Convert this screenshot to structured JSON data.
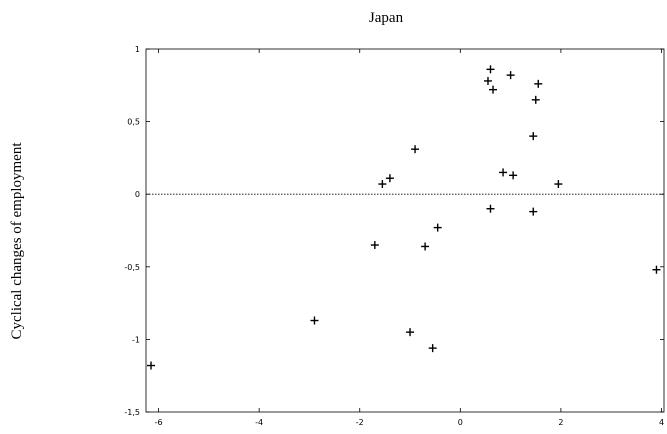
{
  "chart_data": {
    "type": "scatter",
    "title": "Japan",
    "xlabel": "",
    "ylabel": "Cyclical changes of employment",
    "xlim": [
      -6.25,
      4.05
    ],
    "ylim": [
      -1.5,
      1.0
    ],
    "x_ticks": [
      -6,
      -4,
      -2,
      0,
      2,
      4
    ],
    "x_tick_labels": [
      "-6",
      "-4",
      "-2",
      "0",
      "2",
      "4"
    ],
    "y_ticks": [
      1,
      0.5,
      0,
      -0.5,
      -1,
      -1.5
    ],
    "y_tick_labels": [
      "1",
      "0,5",
      "0",
      "-0,5",
      "-1",
      "-1,5"
    ],
    "reference_line_y": 0,
    "marker": "+",
    "points": [
      {
        "x": -6.15,
        "y": -1.18
      },
      {
        "x": -2.9,
        "y": -0.87
      },
      {
        "x": -1.7,
        "y": -0.35
      },
      {
        "x": -1.55,
        "y": 0.07
      },
      {
        "x": -1.4,
        "y": 0.11
      },
      {
        "x": -1.0,
        "y": -0.95
      },
      {
        "x": -0.9,
        "y": 0.31
      },
      {
        "x": -0.7,
        "y": -0.36
      },
      {
        "x": -0.55,
        "y": -1.06
      },
      {
        "x": -0.45,
        "y": -0.23
      },
      {
        "x": 0.55,
        "y": 0.78
      },
      {
        "x": 0.6,
        "y": 0.86
      },
      {
        "x": 0.65,
        "y": 0.72
      },
      {
        "x": 0.6,
        "y": -0.1
      },
      {
        "x": 0.85,
        "y": 0.15
      },
      {
        "x": 1.0,
        "y": 0.82
      },
      {
        "x": 1.05,
        "y": 0.13
      },
      {
        "x": 1.45,
        "y": 0.4
      },
      {
        "x": 1.45,
        "y": -0.12
      },
      {
        "x": 1.5,
        "y": 0.65
      },
      {
        "x": 1.55,
        "y": 0.76
      },
      {
        "x": 1.95,
        "y": 0.07
      },
      {
        "x": 3.9,
        "y": -0.52
      }
    ]
  }
}
